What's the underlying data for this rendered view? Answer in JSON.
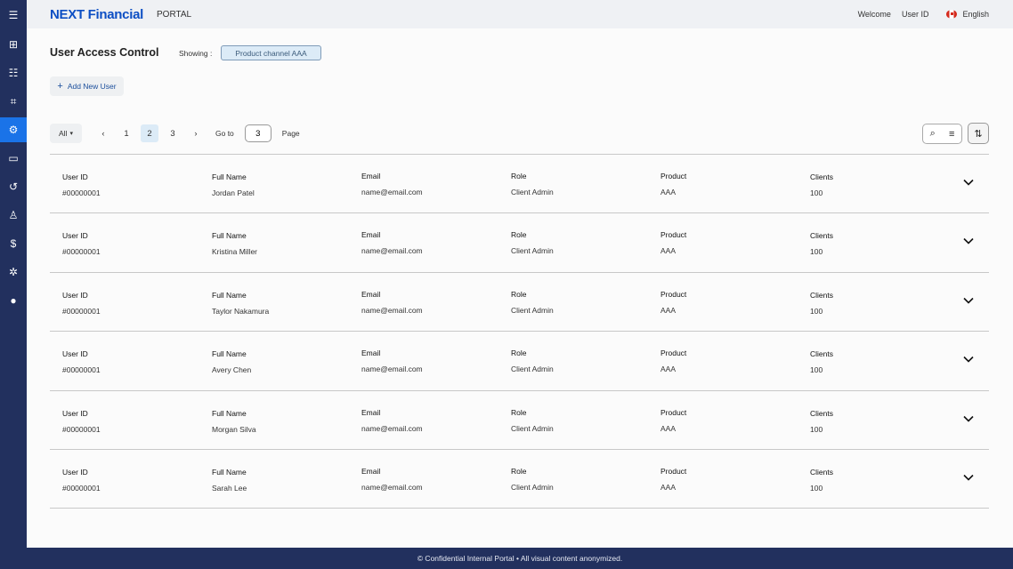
{
  "app": {
    "brand": "NEXT Financial",
    "section": "PORTAL"
  },
  "header": {
    "welcome": "Welcome",
    "user": "User ID",
    "language": "English"
  },
  "sidebar": {
    "items": [
      {
        "icon": "menu-icon"
      },
      {
        "icon": "dashboard-add-icon"
      },
      {
        "icon": "user-list-icon"
      },
      {
        "icon": "crop-icon"
      },
      {
        "icon": "user-settings-icon",
        "active": true
      },
      {
        "icon": "id-card-icon"
      },
      {
        "icon": "history-icon"
      },
      {
        "icon": "user-key-icon"
      },
      {
        "icon": "dollar-icon"
      },
      {
        "icon": "settings-alert-icon"
      },
      {
        "icon": "shield-icon"
      }
    ]
  },
  "page": {
    "title": "User Access Control",
    "showing_label": "Showing :",
    "showing_value": "Product channel AAA",
    "add_user": "Add New User"
  },
  "pager": {
    "filter": "All",
    "pages": [
      "1",
      "2",
      "3"
    ],
    "current": "2",
    "goto_label": "Go to",
    "goto_value": "3",
    "page_label": "Page"
  },
  "columns": [
    "User ID",
    "Full Name",
    "Email",
    "Role",
    "Product",
    "Clients"
  ],
  "rows": [
    [
      "#00000001",
      "Jordan Patel",
      "name@email.com",
      "Client Admin",
      "AAA",
      "100"
    ],
    [
      "#00000001",
      "Kristina Miller",
      "name@email.com",
      "Client Admin",
      "AAA",
      "100"
    ],
    [
      "#00000001",
      "Taylor Nakamura",
      "name@email.com",
      "Client Admin",
      "AAA",
      "100"
    ],
    [
      "#00000001",
      "Avery Chen",
      "name@email.com",
      "Client Admin",
      "AAA",
      "100"
    ],
    [
      "#00000001",
      "Morgan Silva",
      "name@email.com",
      "Client Admin",
      "AAA",
      "100"
    ],
    [
      "#00000001",
      "Sarah Lee",
      "name@email.com",
      "Client Admin",
      "AAA",
      "100"
    ]
  ],
  "footer": "© Confidential Internal Portal • All visual content anonymized.",
  "colors": {
    "sidebar": "#22305e",
    "accent": "#1a73e8",
    "brand": "#0d4fc4"
  }
}
